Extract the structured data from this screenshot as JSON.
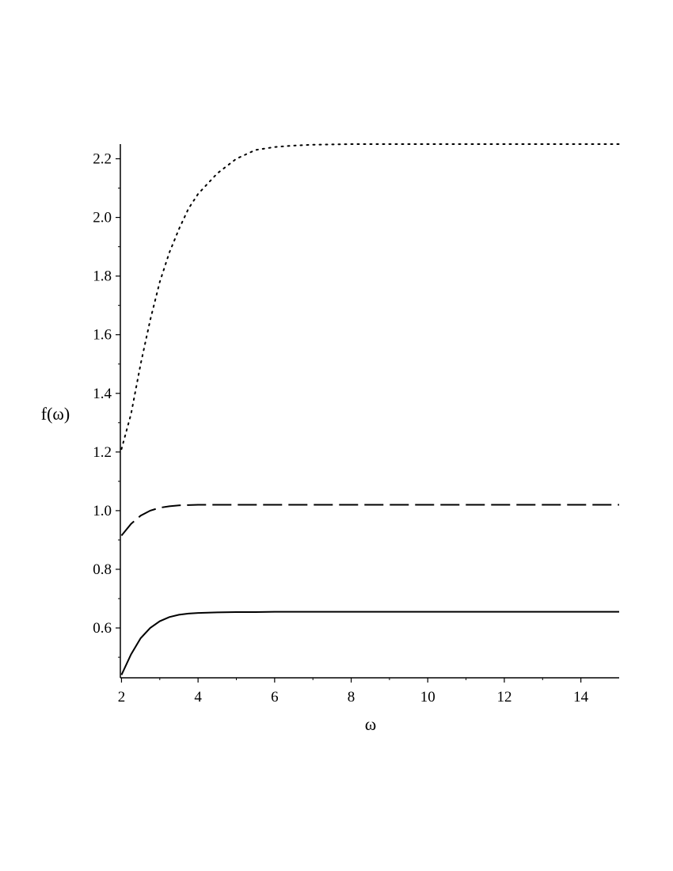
{
  "chart_data": {
    "type": "line",
    "title": "",
    "xlabel": "ω",
    "ylabel": "f(ω)",
    "xlim": [
      1.97,
      15
    ],
    "ylim": [
      0.43,
      2.25
    ],
    "x_ticks": [
      2,
      4,
      6,
      8,
      10,
      12,
      14
    ],
    "x_tick_labels": [
      "2",
      "4",
      "6",
      "8",
      "10",
      "12",
      "14"
    ],
    "y_ticks": [
      0.6,
      0.8,
      1.0,
      1.2,
      1.4,
      1.6,
      1.8,
      2.0,
      2.2
    ],
    "y_tick_labels": [
      "0.6",
      "0.8",
      "1.0",
      "1.2",
      "1.4",
      "1.6",
      "1.8",
      "2.0",
      "2.2"
    ],
    "grid": false,
    "legend": "none",
    "x": [
      2,
      2.25,
      2.5,
      2.75,
      3,
      3.25,
      3.5,
      3.75,
      4,
      4.5,
      5,
      5.5,
      6,
      6.5,
      7,
      8,
      9,
      10,
      11,
      12,
      13,
      14,
      15
    ],
    "series": [
      {
        "style": "dotted",
        "color": "#000000",
        "values": [
          1.21,
          1.33,
          1.5,
          1.65,
          1.78,
          1.88,
          1.96,
          2.03,
          2.08,
          2.15,
          2.2,
          2.23,
          2.24,
          2.245,
          2.248,
          2.25,
          2.25,
          2.25,
          2.25,
          2.25,
          2.25,
          2.25,
          2.25
        ]
      },
      {
        "style": "dashed",
        "color": "#000000",
        "values": [
          0.915,
          0.955,
          0.983,
          1.0,
          1.01,
          1.015,
          1.018,
          1.019,
          1.02,
          1.02,
          1.02,
          1.02,
          1.02,
          1.02,
          1.02,
          1.02,
          1.02,
          1.02,
          1.02,
          1.02,
          1.02,
          1.02,
          1.02
        ]
      },
      {
        "style": "solid",
        "color": "#000000",
        "values": [
          0.44,
          0.51,
          0.565,
          0.6,
          0.623,
          0.637,
          0.645,
          0.649,
          0.651,
          0.653,
          0.654,
          0.654,
          0.655,
          0.655,
          0.655,
          0.655,
          0.655,
          0.655,
          0.655,
          0.655,
          0.655,
          0.655,
          0.655
        ]
      }
    ]
  }
}
